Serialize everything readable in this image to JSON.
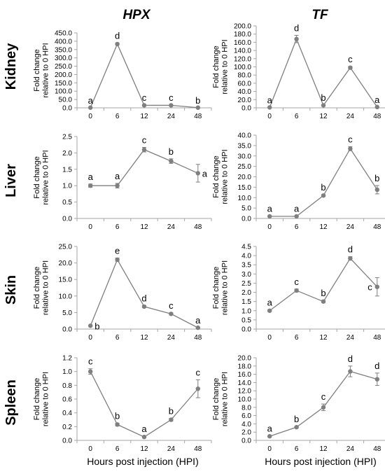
{
  "columns": [
    "HPX",
    "TF"
  ],
  "rows": [
    "Kidney",
    "Liver",
    "Skin",
    "Spleen"
  ],
  "xlabel": "Hours post injection (HPI)",
  "colors": {
    "series": "#7f7f7f",
    "axis": "#a6a6a6",
    "text": "#000000"
  },
  "chart_data": [
    {
      "type": "line",
      "gene": "HPX",
      "tissue": "Kidney",
      "ylabel": "Fold change relative to 0 HPI",
      "categories": [
        "0",
        "6",
        "12",
        "24",
        "48"
      ],
      "values": [
        1,
        383,
        15,
        15,
        1
      ],
      "errors": [
        0,
        5,
        1,
        1,
        0
      ],
      "letters": [
        "a",
        "d",
        "c",
        "c",
        "b"
      ],
      "ylim": [
        0,
        450
      ],
      "ytick_step": 50,
      "decimals": 1
    },
    {
      "type": "line",
      "gene": "TF",
      "tissue": "Kidney",
      "ylabel": "Fold change relative to 0 HPI",
      "categories": [
        "0",
        "6",
        "12",
        "24",
        "48"
      ],
      "values": [
        1,
        168,
        6,
        98,
        2
      ],
      "errors": [
        0,
        9,
        1,
        3,
        0
      ],
      "letters": [
        "a",
        "d",
        "b",
        "c",
        "a"
      ],
      "ylim": [
        0,
        200
      ],
      "ytick_step": 20,
      "decimals": 1
    },
    {
      "type": "line",
      "gene": "HPX",
      "tissue": "Liver",
      "ylabel": "Fold change relative to 0 HPI",
      "categories": [
        "0",
        "6",
        "12",
        "24",
        "48"
      ],
      "values": [
        1.0,
        1.0,
        2.1,
        1.75,
        1.38
      ],
      "errors": [
        0.05,
        0.07,
        0.07,
        0.07,
        0.27
      ],
      "letters": [
        "a",
        "a",
        "c",
        "b",
        "a"
      ],
      "ylim": [
        0,
        2.5
      ],
      "ytick_step": 0.5,
      "decimals": 1
    },
    {
      "type": "line",
      "gene": "TF",
      "tissue": "Liver",
      "ylabel": "Fold change relative to 0 HPI",
      "categories": [
        "0",
        "6",
        "12",
        "24",
        "48"
      ],
      "values": [
        1.0,
        1.0,
        11.0,
        33.5,
        13.8
      ],
      "errors": [
        0.1,
        0.1,
        0.5,
        1.0,
        2.0
      ],
      "letters": [
        "a",
        "a",
        "b",
        "c",
        "b"
      ],
      "ylim": [
        0,
        40
      ],
      "ytick_step": 5,
      "decimals": 1
    },
    {
      "type": "line",
      "gene": "HPX",
      "tissue": "Skin",
      "ylabel": "Fold change relative to 0 HPI",
      "categories": [
        "0",
        "6",
        "12",
        "24",
        "48"
      ],
      "values": [
        1.0,
        21.0,
        6.8,
        4.6,
        0.4
      ],
      "errors": [
        0.1,
        0.5,
        0.3,
        0.3,
        0.05
      ],
      "letters": [
        "b",
        "e",
        "d",
        "c",
        "a"
      ],
      "ylim": [
        0,
        25
      ],
      "ytick_step": 5,
      "decimals": 1
    },
    {
      "type": "line",
      "gene": "TF",
      "tissue": "Skin",
      "ylabel": "Fold change relative to 0 HPI",
      "categories": [
        "0",
        "6",
        "12",
        "24",
        "48"
      ],
      "values": [
        1.0,
        2.1,
        1.5,
        3.85,
        2.3
      ],
      "errors": [
        0.05,
        0.08,
        0.06,
        0.1,
        0.5
      ],
      "letters": [
        "a",
        "c",
        "b",
        "d",
        "c"
      ],
      "ylim": [
        0,
        4.5
      ],
      "ytick_step": 0.5,
      "decimals": 1
    },
    {
      "type": "line",
      "gene": "HPX",
      "tissue": "Spleen",
      "ylabel": "Fold change relative to 0 HPI",
      "categories": [
        "0",
        "6",
        "12",
        "24",
        "48"
      ],
      "values": [
        1.0,
        0.23,
        0.05,
        0.3,
        0.75
      ],
      "errors": [
        0.04,
        0.02,
        0.01,
        0.02,
        0.13
      ],
      "letters": [
        "c",
        "b",
        "a",
        "b",
        "c"
      ],
      "ylim": [
        0,
        1.2
      ],
      "ytick_step": 0.2,
      "decimals": 1
    },
    {
      "type": "line",
      "gene": "TF",
      "tissue": "Spleen",
      "ylabel": "Fold change relative to 0 HPI",
      "categories": [
        "0",
        "6",
        "12",
        "24",
        "48"
      ],
      "values": [
        1.0,
        3.2,
        8.0,
        16.7,
        14.8
      ],
      "errors": [
        0.1,
        0.2,
        0.8,
        1.3,
        1.5
      ],
      "letters": [
        "a",
        "b",
        "c",
        "d",
        "d"
      ],
      "ylim": [
        0,
        20
      ],
      "ytick_step": 2,
      "decimals": 1
    }
  ]
}
